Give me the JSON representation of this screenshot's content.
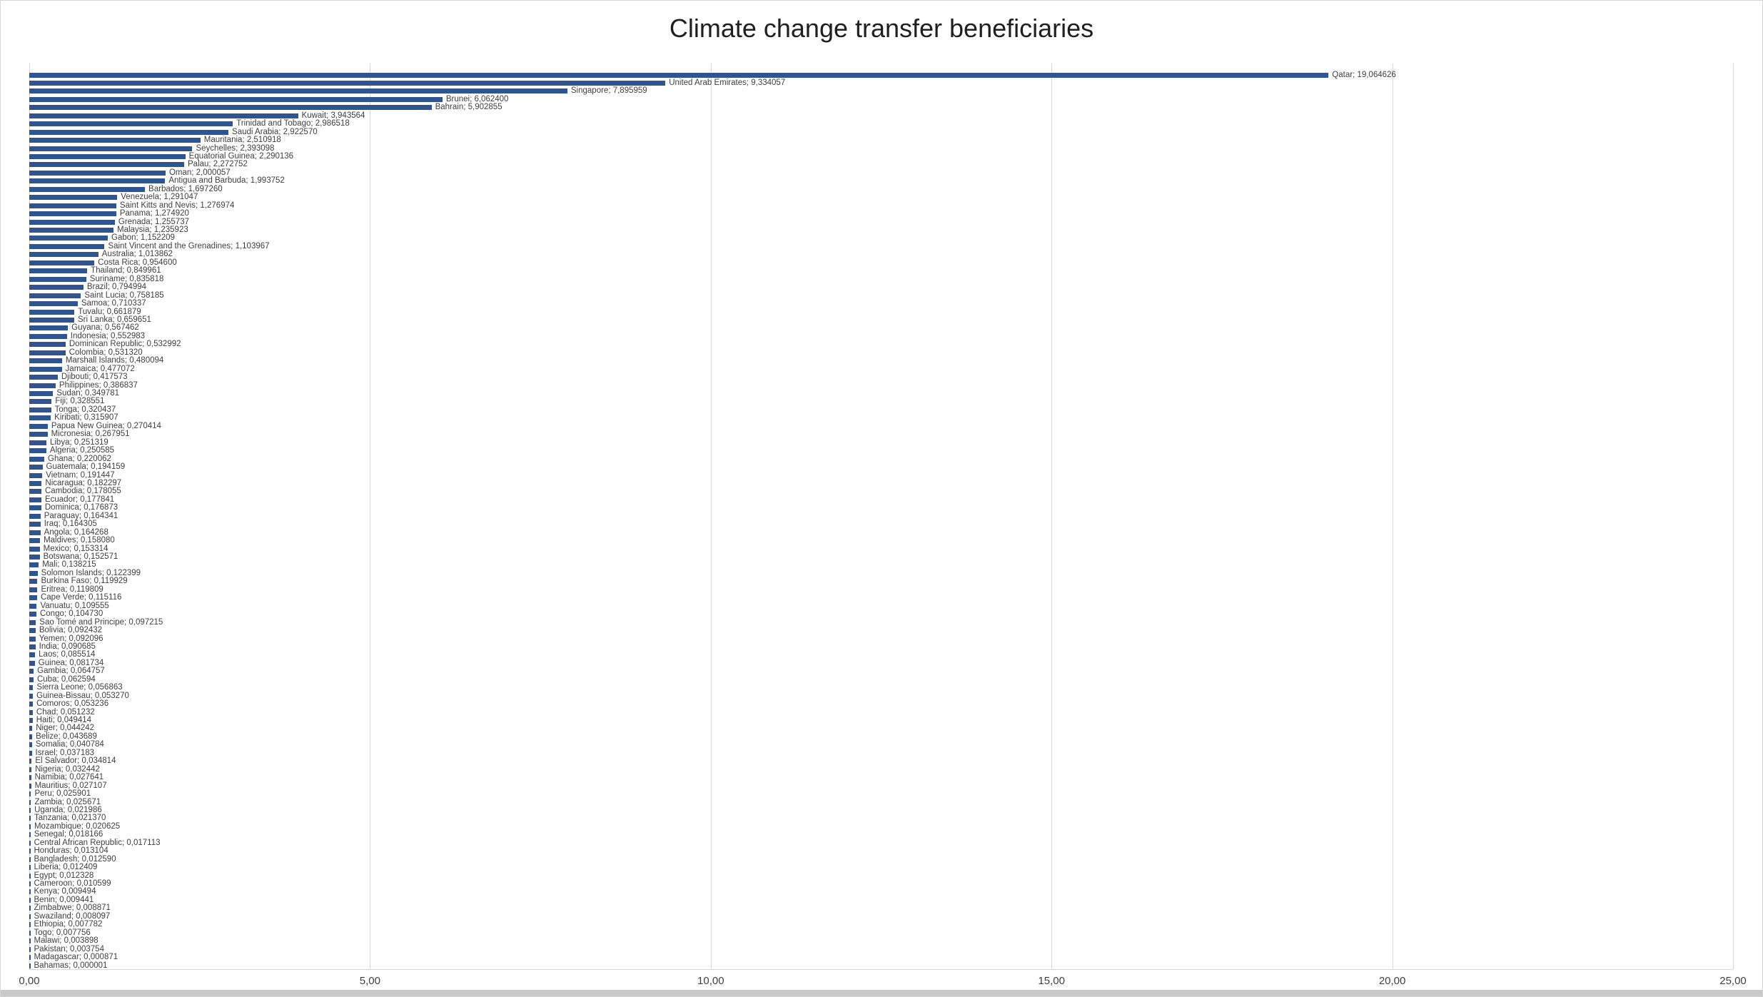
{
  "window": {
    "background": "#ffffff",
    "border_color": "#d6d6d6",
    "bottom_strip_color": "#c9c9c9"
  },
  "chart_data": {
    "type": "bar",
    "orientation": "horizontal",
    "title": "Climate change transfer beneficiaries",
    "bar_color": "#2F548F",
    "gridline_color": "#d9d9d9",
    "data_label_color": "#404040",
    "decimal_separator": ",",
    "value_label_decimals": 6,
    "xlim": [
      0,
      25
    ],
    "x_tick_values": [
      0,
      5,
      10,
      15,
      20,
      25
    ],
    "x_tick_labels": [
      "0,00",
      "5,00",
      "10,00",
      "15,00",
      "20,00",
      "25,00"
    ],
    "legend": "none",
    "grid": "vertical-only",
    "categories": [
      "Qatar",
      "United Arab Emirates",
      "Singapore",
      "Brunei",
      "Bahrain",
      "Kuwait",
      "Trinidad and Tobago",
      "Saudi Arabia",
      "Mauritania",
      "Seychelles",
      "Equatorial Guinea",
      "Palau",
      "Oman",
      "Antigua and Barbuda",
      "Barbados",
      "Venezuela",
      "Saint Kitts and Nevis",
      "Panama",
      "Grenada",
      "Malaysia",
      "Gabon",
      "Saint Vincent and the Grenadines",
      "Australia",
      "Costa Rica",
      "Thailand",
      "Suriname",
      "Brazil",
      "Saint Lucia",
      "Samoa",
      "Tuvalu",
      "Sri Lanka",
      "Guyana",
      "Indonesia",
      "Dominican Republic",
      "Colombia",
      "Marshall Islands",
      "Jamaica",
      "Djibouti",
      "Philippines",
      "Sudan",
      "Fiji",
      "Tonga",
      "Kiribati",
      "Papua New Guinea",
      "Micronesia",
      "Libya",
      "Algeria",
      "Ghana",
      "Guatemala",
      "Vietnam",
      "Nicaragua",
      "Cambodia",
      "Ecuador",
      "Dominica",
      "Paraguay",
      "Iraq",
      "Angola",
      "Maldives",
      "Mexico",
      "Botswana",
      "Mali",
      "Solomon Islands",
      "Burkina Faso",
      "Eritrea",
      "Cape Verde",
      "Vanuatu",
      "Congo",
      "Sao Tomé and Principe",
      "Bolivia",
      "Yemen",
      "India",
      "Laos",
      "Guinea",
      "Gambia",
      "Cuba",
      "Sierra Leone",
      "Guinea-Bissau",
      "Comoros",
      "Chad",
      "Haiti",
      "Niger",
      "Belize",
      "Somalia",
      "Israel",
      "El Salvador",
      "Nigeria",
      "Namibia",
      "Mauritius",
      "Peru",
      "Zambia",
      "Uganda",
      "Tanzania",
      "Mozambique",
      "Senegal",
      "Central African Republic",
      "Honduras",
      "Bangladesh",
      "Liberia",
      "Egypt",
      "Cameroon",
      "Kenya",
      "Benin",
      "Zimbabwe",
      "Swaziland",
      "Ethiopia",
      "Togo",
      "Malawi",
      "Pakistan",
      "Madagascar",
      "Bahamas"
    ],
    "values": [
      19.064626,
      9.334057,
      7.895959,
      6.0624,
      5.902855,
      3.943564,
      2.986518,
      2.92257,
      2.510918,
      2.393098,
      2.290136,
      2.272752,
      2.000057,
      1.993752,
      1.69726,
      1.291047,
      1.276974,
      1.27492,
      1.255737,
      1.235923,
      1.152209,
      1.103967,
      1.013862,
      0.9546,
      0.849961,
      0.835818,
      0.794994,
      0.758185,
      0.710337,
      0.661879,
      0.659651,
      0.567462,
      0.552983,
      0.532992,
      0.53132,
      0.480094,
      0.477072,
      0.417573,
      0.386837,
      0.349781,
      0.328551,
      0.320437,
      0.315907,
      0.270414,
      0.267951,
      0.251319,
      0.250585,
      0.220062,
      0.194159,
      0.191447,
      0.182297,
      0.178055,
      0.177841,
      0.176873,
      0.164341,
      0.164305,
      0.164268,
      0.15808,
      0.153314,
      0.152571,
      0.138215,
      0.122399,
      0.119929,
      0.119809,
      0.115116,
      0.109555,
      0.10473,
      0.097215,
      0.092432,
      0.092096,
      0.090685,
      0.085514,
      0.081734,
      0.064757,
      0.062594,
      0.056863,
      0.05327,
      0.053236,
      0.051232,
      0.049414,
      0.044242,
      0.043689,
      0.040784,
      0.037183,
      0.034814,
      0.032442,
      0.027641,
      0.027107,
      0.025901,
      0.025671,
      0.021986,
      0.02137,
      0.020625,
      0.018166,
      0.017113,
      0.013104,
      0.01259,
      0.012409,
      0.012328,
      0.010599,
      0.009494,
      0.009441,
      0.008871,
      0.008097,
      0.007782,
      0.007756,
      0.003898,
      0.003754,
      0.000871,
      1e-06
    ]
  }
}
